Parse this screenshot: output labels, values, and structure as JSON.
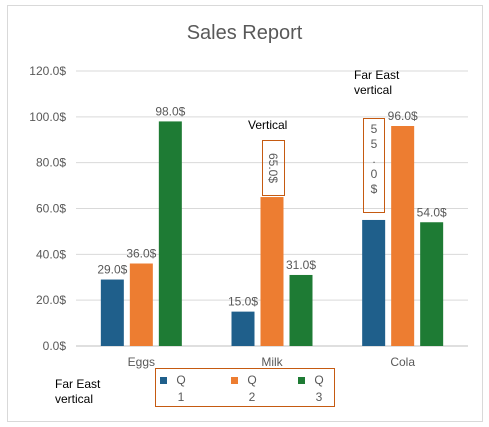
{
  "chart_data": {
    "type": "bar",
    "title": "Sales Report",
    "categories": [
      "Eggs",
      "Milk",
      "Cola"
    ],
    "series": [
      {
        "name": "Q1",
        "color": "#1f5f8b",
        "values": [
          29.0,
          15.0,
          55.0
        ]
      },
      {
        "name": "Q2",
        "color": "#ed7d31",
        "values": [
          36.0,
          65.0,
          96.0
        ]
      },
      {
        "name": "Q3",
        "color": "#1e7b34",
        "values": [
          98.0,
          31.0,
          54.0
        ]
      }
    ],
    "data_labels": [
      [
        "29.0$",
        "15.0$",
        "55.0$"
      ],
      [
        "36.0$",
        "65.0$",
        "96.0$"
      ],
      [
        "98.0$",
        "31.0$",
        "54.0$"
      ]
    ],
    "y_ticks": [
      "0.0$",
      "20.0$",
      "40.0$",
      "60.0$",
      "80.0$",
      "100.0$",
      "120.0$"
    ],
    "ylim": [
      0,
      120
    ],
    "grid": true,
    "legend_position": "bottom",
    "legend_labels": [
      [
        "Q",
        "1"
      ],
      [
        "Q",
        "2"
      ],
      [
        "Q",
        "3"
      ]
    ],
    "cola_q1_chars": [
      "5",
      "5",
      ".",
      "0",
      "$"
    ]
  },
  "annotations": {
    "far_east_bar_line1": "Far East",
    "far_east_bar_line2": "vertical",
    "vertical": "Vertical",
    "far_east_legend_line1": "Far East",
    "far_east_legend_line2": "vertical"
  }
}
